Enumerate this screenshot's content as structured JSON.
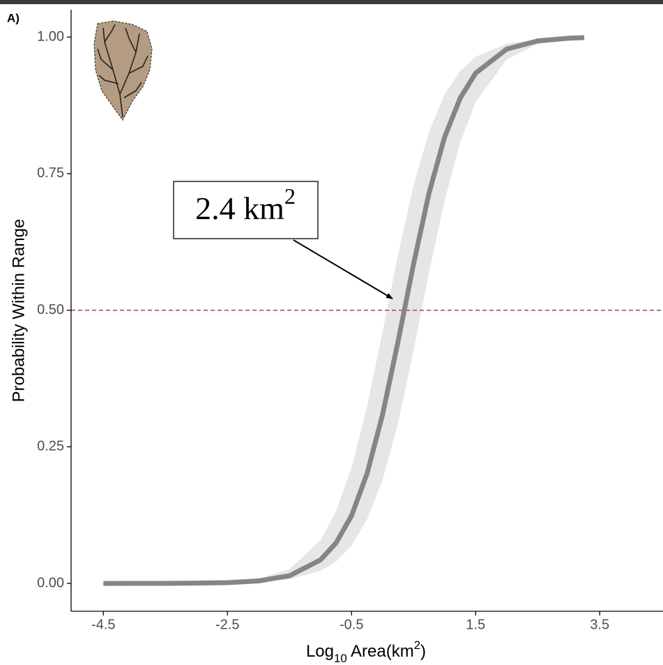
{
  "chart_data": {
    "type": "line",
    "panel_label": "A)",
    "y_label": "Probability Within Range",
    "x_label": [
      {
        "text": "Log"
      },
      {
        "text": "10",
        "style": "sub"
      },
      {
        "text": " Area(km"
      },
      {
        "text": "2",
        "style": "sup"
      },
      {
        "text": ")"
      }
    ],
    "annotation": [
      {
        "text": "2.4 km"
      },
      {
        "text": "2",
        "style": "sup"
      }
    ],
    "x": [
      -4.5,
      -4,
      -3.5,
      -3,
      -2.5,
      -2,
      -1.5,
      -1,
      -0.75,
      -0.5,
      -0.25,
      0,
      0.25,
      0.5,
      0.75,
      1,
      1.25,
      1.5,
      2,
      2.5,
      3,
      3.25
    ],
    "values": [
      0.0,
      0.0001,
      0.0001,
      0.0005,
      0.0014,
      0.0045,
      0.014,
      0.043,
      0.074,
      0.124,
      0.201,
      0.309,
      0.443,
      0.585,
      0.715,
      0.817,
      0.888,
      0.934,
      0.978,
      0.993,
      0.998,
      0.999
    ],
    "band_lower": [
      0.0,
      0.0,
      0.0001,
      0.0002,
      0.0007,
      0.0024,
      0.0074,
      0.023,
      0.04,
      0.069,
      0.117,
      0.19,
      0.294,
      0.426,
      0.569,
      0.701,
      0.806,
      0.881,
      0.959,
      0.987,
      0.996,
      0.998
    ],
    "band_upper": [
      0.0,
      0.0001,
      0.0003,
      0.0009,
      0.0027,
      0.0085,
      0.026,
      0.079,
      0.132,
      0.212,
      0.324,
      0.46,
      0.602,
      0.729,
      0.827,
      0.895,
      0.938,
      0.964,
      0.988,
      0.996,
      0.999,
      0.9993
    ],
    "color": "#858585",
    "band_color": "#e6e6e6",
    "reference_line": {
      "y": 0.5,
      "color": "#b73a45",
      "style": "dashed"
    },
    "xlim": [
      -5.02,
      4.52
    ],
    "ylim": [
      -0.051,
      1.05
    ],
    "xticks": [
      -4.5,
      -2.5,
      -0.5,
      1.5,
      3.5
    ],
    "yticks": [
      {
        "value": 0,
        "label": "0.00"
      },
      {
        "value": 0.25,
        "label": "0.25"
      },
      {
        "value": 0.5,
        "label": "0.50"
      },
      {
        "value": 0.75,
        "label": "0.75"
      },
      {
        "value": 1,
        "label": "1.00"
      }
    ],
    "grid": false
  }
}
